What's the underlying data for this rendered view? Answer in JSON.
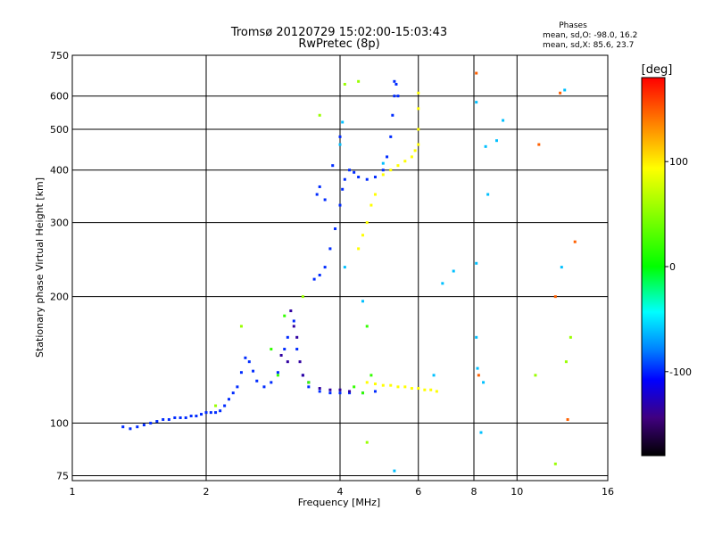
{
  "chart_data": {
    "type": "scatter",
    "title": "Tromsø 20120729 15:02:00-15:03:43",
    "subtitle": "RwPretec (8p)",
    "xlabel": "Frequency [MHz]",
    "ylabel": "Stationary phase Virtual Height [km]",
    "x_scale": "log",
    "y_scale": "log",
    "xlim": [
      1,
      16
    ],
    "ylim": [
      73,
      750
    ],
    "x_ticks": [
      1,
      2,
      4,
      6,
      8,
      10,
      16
    ],
    "x_tick_labels": [
      "1",
      "2",
      "4",
      "6",
      "8",
      "10",
      "16"
    ],
    "y_ticks": [
      75,
      100,
      200,
      300,
      400,
      500,
      600,
      750
    ],
    "y_tick_labels": [
      "75",
      "100",
      "200",
      "300",
      "400",
      "500",
      "600",
      "750"
    ],
    "grid": true,
    "legend": {
      "title": "Phases",
      "line1": "mean, sd,O: -98.0, 16.2",
      "line2": "mean, sd,X:  85.6, 23.7"
    },
    "colorbar": {
      "label": "[deg]",
      "range": [
        -180,
        180
      ],
      "ticks": [
        100,
        0,
        -100
      ],
      "tick_labels": [
        "100",
        "0",
        "-100"
      ]
    },
    "series": [
      {
        "phase": -100,
        "points": [
          [
            1.3,
            98
          ],
          [
            1.35,
            97
          ],
          [
            1.4,
            98
          ],
          [
            1.45,
            99
          ],
          [
            1.5,
            100
          ],
          [
            1.55,
            101
          ],
          [
            1.6,
            102
          ],
          [
            1.65,
            102
          ],
          [
            1.7,
            103
          ],
          [
            1.75,
            103
          ],
          [
            1.8,
            103
          ],
          [
            1.85,
            104
          ],
          [
            1.9,
            104
          ],
          [
            1.95,
            105
          ],
          [
            2.0,
            106
          ],
          [
            2.05,
            106
          ],
          [
            2.1,
            106
          ],
          [
            2.15,
            107
          ],
          [
            2.2,
            110
          ],
          [
            2.25,
            114
          ],
          [
            2.3,
            118
          ],
          [
            2.35,
            122
          ],
          [
            2.4,
            132
          ],
          [
            2.45,
            143
          ],
          [
            2.5,
            140
          ],
          [
            2.55,
            133
          ],
          [
            2.6,
            126
          ],
          [
            2.7,
            122
          ],
          [
            2.8,
            125
          ],
          [
            2.9,
            132
          ],
          [
            3.0,
            150
          ],
          [
            3.05,
            160
          ],
          [
            3.15,
            175
          ],
          [
            3.2,
            150
          ],
          [
            3.3,
            130
          ],
          [
            3.4,
            122
          ],
          [
            3.6,
            119
          ],
          [
            3.8,
            118
          ],
          [
            4.0,
            118
          ],
          [
            4.2,
            118
          ],
          [
            4.5,
            118
          ],
          [
            4.8,
            119
          ],
          [
            3.5,
            220
          ],
          [
            3.6,
            225
          ],
          [
            3.7,
            235
          ],
          [
            3.8,
            260
          ],
          [
            3.9,
            290
          ],
          [
            4.0,
            330
          ],
          [
            4.05,
            360
          ],
          [
            4.1,
            380
          ],
          [
            4.2,
            400
          ],
          [
            4.3,
            395
          ],
          [
            4.4,
            385
          ],
          [
            4.6,
            380
          ],
          [
            4.8,
            385
          ],
          [
            5.0,
            400
          ],
          [
            5.1,
            430
          ],
          [
            5.2,
            480
          ],
          [
            5.25,
            540
          ],
          [
            5.3,
            600
          ],
          [
            5.35,
            640
          ],
          [
            3.7,
            340
          ],
          [
            3.6,
            365
          ],
          [
            3.55,
            350
          ],
          [
            3.85,
            410
          ],
          [
            4.0,
            480
          ],
          [
            5.4,
            600
          ],
          [
            5.3,
            650
          ]
        ]
      },
      {
        "phase": 100,
        "points": [
          [
            4.6,
            125
          ],
          [
            4.8,
            124
          ],
          [
            5.0,
            123
          ],
          [
            5.2,
            123
          ],
          [
            5.4,
            122
          ],
          [
            5.6,
            122
          ],
          [
            5.8,
            121
          ],
          [
            6.0,
            121
          ],
          [
            6.2,
            120
          ],
          [
            6.4,
            120
          ],
          [
            6.6,
            119
          ],
          [
            4.4,
            260
          ],
          [
            4.5,
            280
          ],
          [
            4.6,
            300
          ],
          [
            4.7,
            330
          ],
          [
            4.8,
            350
          ],
          [
            5.0,
            390
          ],
          [
            5.2,
            400
          ],
          [
            5.4,
            410
          ],
          [
            5.6,
            420
          ],
          [
            5.8,
            430
          ],
          [
            5.9,
            445
          ],
          [
            6.0,
            460
          ],
          [
            6.0,
            500
          ],
          [
            6.0,
            560
          ],
          [
            6.0,
            610
          ]
        ]
      },
      {
        "phase": -140,
        "points": [
          [
            3.1,
            185
          ],
          [
            3.15,
            170
          ],
          [
            3.2,
            160
          ],
          [
            3.25,
            140
          ],
          [
            3.3,
            130
          ],
          [
            3.4,
            125
          ],
          [
            3.6,
            121
          ],
          [
            3.8,
            120
          ],
          [
            4.0,
            120
          ],
          [
            4.2,
            119
          ],
          [
            3.05,
            140
          ],
          [
            2.95,
            145
          ]
        ]
      },
      {
        "phase": -60,
        "points": [
          [
            4.0,
            460
          ],
          [
            4.05,
            520
          ],
          [
            5.0,
            415
          ],
          [
            4.1,
            235
          ],
          [
            4.5,
            195
          ],
          [
            8.1,
            580
          ],
          [
            8.1,
            240
          ],
          [
            8.1,
            160
          ],
          [
            8.15,
            135
          ],
          [
            8.4,
            125
          ],
          [
            8.5,
            455
          ],
          [
            8.6,
            350
          ],
          [
            9.0,
            470
          ],
          [
            9.3,
            525
          ],
          [
            12.8,
            620
          ],
          [
            12.6,
            235
          ],
          [
            5.3,
            77
          ],
          [
            6.5,
            130
          ],
          [
            6.8,
            215
          ],
          [
            7.2,
            230
          ],
          [
            8.3,
            95
          ]
        ]
      },
      {
        "phase": 150,
        "points": [
          [
            8.1,
            680
          ],
          [
            8.2,
            130
          ],
          [
            12.5,
            610
          ],
          [
            12.2,
            200
          ],
          [
            13.0,
            102
          ],
          [
            13.5,
            270
          ],
          [
            11.2,
            460
          ]
        ]
      },
      {
        "phase": 60,
        "points": [
          [
            3.6,
            540
          ],
          [
            4.1,
            640
          ],
          [
            4.4,
            650
          ],
          [
            2.1,
            110
          ],
          [
            2.4,
            170
          ],
          [
            3.3,
            200
          ],
          [
            4.6,
            90
          ],
          [
            11.0,
            130
          ],
          [
            12.2,
            80
          ],
          [
            12.9,
            140
          ],
          [
            13.2,
            160
          ]
        ]
      },
      {
        "phase": 20,
        "points": [
          [
            2.8,
            150
          ],
          [
            2.9,
            130
          ],
          [
            3.4,
            125
          ],
          [
            4.3,
            122
          ],
          [
            4.5,
            118
          ],
          [
            3.0,
            180
          ],
          [
            4.7,
            130
          ],
          [
            4.6,
            170
          ]
        ]
      }
    ]
  }
}
